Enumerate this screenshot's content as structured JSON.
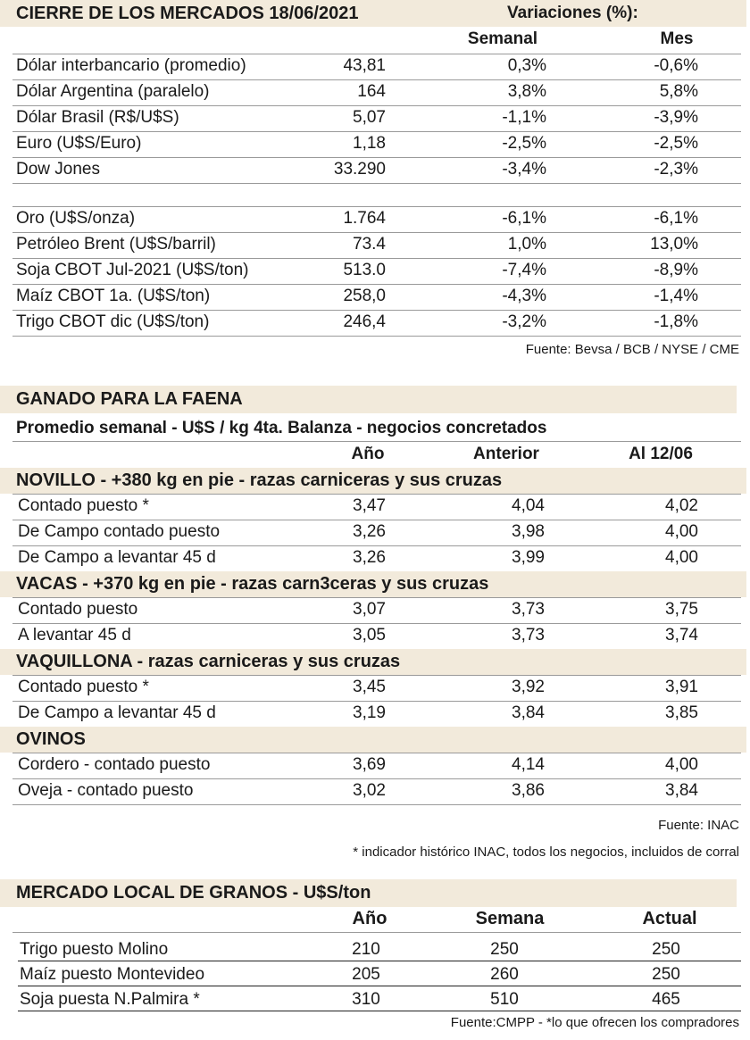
{
  "section1": {
    "title": "CIERRE DE LOS MERCADOS 18/06/2021",
    "variations_label": "Variaciones (%):",
    "columns": [
      "Semanal",
      "Mes"
    ],
    "rows": [
      [
        "Dólar interbancario (promedio)",
        "43,81",
        "0,3%",
        "-0,6%"
      ],
      [
        "Dólar Argentina (paralelo)",
        "164",
        "3,8%",
        "5,8%"
      ],
      [
        "Dólar Brasil (R$/U$S)",
        "5,07",
        "-1,1%",
        "-3,9%"
      ],
      [
        "Euro (U$S/Euro)",
        "1,18",
        "-2,5%",
        "-2,5%"
      ],
      [
        "Dow Jones",
        "33.290",
        "-3,4%",
        "-2,3%"
      ]
    ],
    "rows2": [
      [
        "Oro (U$S/onza)",
        "1.764",
        "-6,1%",
        "-6,1%"
      ],
      [
        "Petróleo Brent (U$S/barril)",
        "73.4",
        "1,0%",
        "13,0%"
      ],
      [
        "Soja CBOT Jul-2021 (U$S/ton)",
        "513.0",
        "-7,4%",
        "-8,9%"
      ],
      [
        "Maíz CBOT 1a. (U$S/ton)",
        "258,0",
        "-4,3%",
        "-1,4%"
      ],
      [
        "Trigo CBOT dic (U$S/ton)",
        "246,4",
        "-3,2%",
        "-1,8%"
      ]
    ],
    "source": "Fuente: Bevsa / BCB / NYSE / CME"
  },
  "section2": {
    "title": "GANADO PARA LA FAENA",
    "subtitle": "Promedio semanal - U$S / kg 4ta. Balanza - negocios concretados",
    "columns": [
      "Año",
      "Anterior",
      "Al 12/06"
    ],
    "groups": [
      {
        "title": "NOVILLO - +380 kg en pie - razas carniceras y sus cruzas",
        "rows": [
          [
            "Contado puesto *",
            "3,47",
            "4,04",
            "4,02"
          ],
          [
            "De Campo contado puesto",
            "3,26",
            "3,98",
            "4,00"
          ],
          [
            "De Campo a levantar 45 d",
            "3,26",
            "3,99",
            "4,00"
          ]
        ]
      },
      {
        "title": "VACAS - +370 kg en pie - razas carn3ceras y sus cruzas",
        "rows": [
          [
            "Contado puesto",
            "3,07",
            "3,73",
            "3,75"
          ],
          [
            "A levantar 45 d",
            "3,05",
            "3,73",
            "3,74"
          ]
        ]
      },
      {
        "title": "VAQUILLONA - razas carniceras y sus cruzas",
        "rows": [
          [
            "Contado puesto *",
            "3,45",
            "3,92",
            "3,91"
          ],
          [
            "De Campo a levantar 45 d",
            "3,19",
            "3,84",
            "3,85"
          ]
        ]
      },
      {
        "title": "OVINOS",
        "rows": [
          [
            "Cordero - contado puesto",
            "3,69",
            "4,14",
            "4,00"
          ],
          [
            "Oveja - contado puesto",
            "3,02",
            "3,86",
            "3,84"
          ]
        ]
      }
    ],
    "source": "Fuente: INAC",
    "note": "* indicador histórico INAC, todos los negocios, incluidos de corral"
  },
  "section3": {
    "title": "MERCADO LOCAL DE GRANOS - U$S/ton",
    "columns": [
      "Año",
      "Semana",
      "Actual"
    ],
    "rows": [
      [
        "Trigo puesto Molino",
        "210",
        "250",
        "250"
      ],
      [
        "Maíz puesto Montevideo",
        "205",
        "260",
        "250"
      ],
      [
        "Soja puesta N.Palmira *",
        "310",
        "510",
        "465"
      ]
    ],
    "source": "Fuente:CMPP - *lo que ofrecen los compradores"
  }
}
